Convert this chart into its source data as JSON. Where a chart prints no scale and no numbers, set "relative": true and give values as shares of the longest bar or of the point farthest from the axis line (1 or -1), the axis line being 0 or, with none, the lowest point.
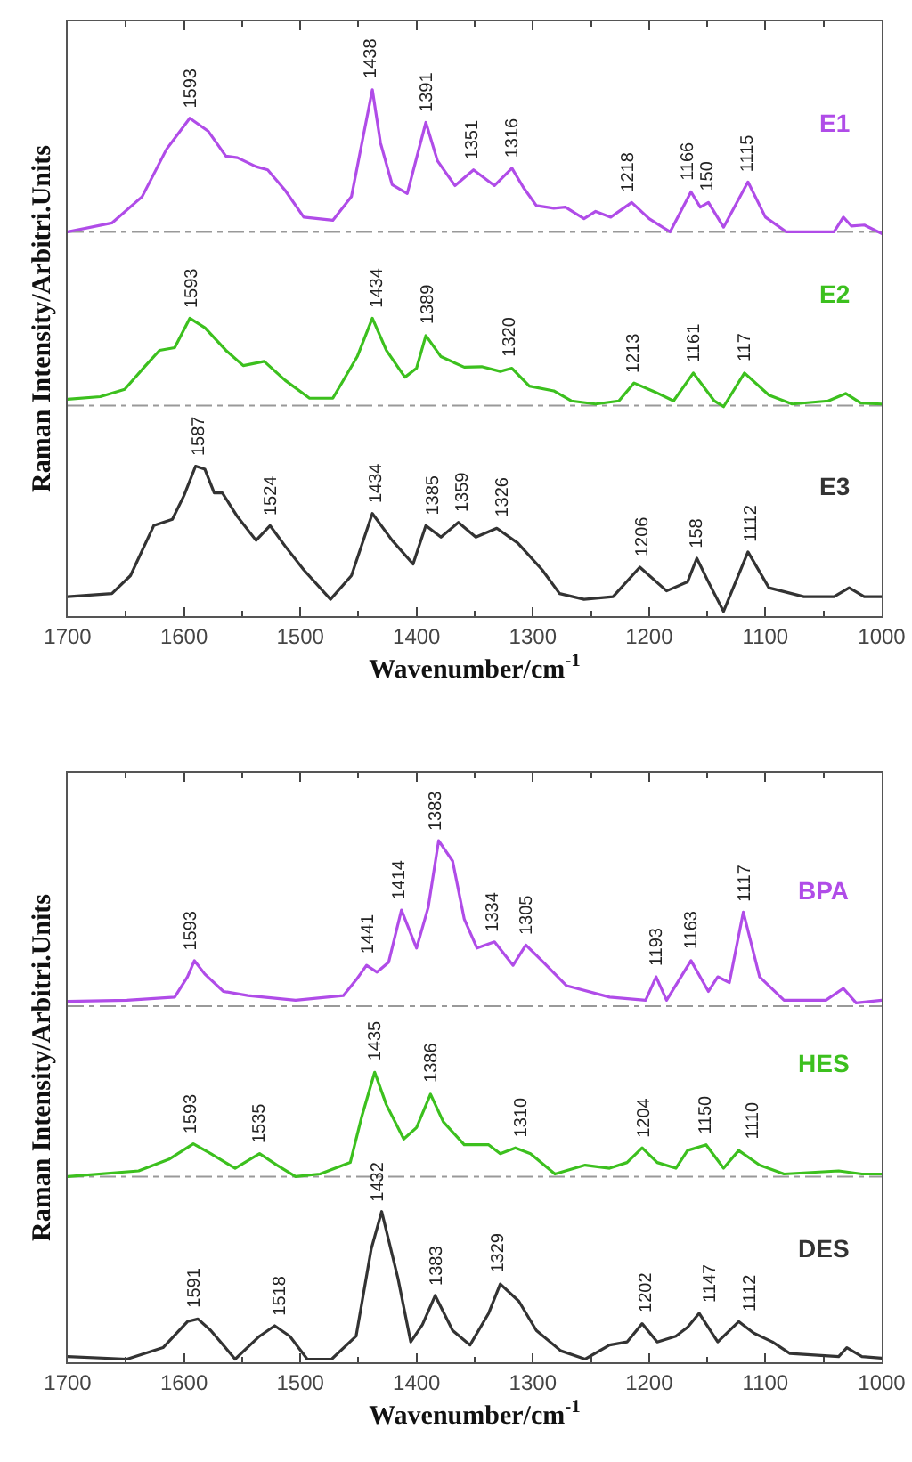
{
  "chart_data": [
    {
      "type": "line",
      "relative": true,
      "xlabel": "Wavenumber/cm$^{-1}$",
      "ylabel": "Raman Intensity/Arbitri.Units",
      "xlim": [
        1700,
        1000
      ],
      "xticks": [
        1700,
        1600,
        1500,
        1400,
        1300,
        1200,
        1100,
        1000
      ],
      "grid": false,
      "tick_labels": "x",
      "series": [
        {
          "name": "E1",
          "color": "#b04ce8",
          "x": [
            1700,
            1662,
            1636,
            1615,
            1595,
            1579,
            1564,
            1554,
            1538,
            1528,
            1513,
            1497,
            1472,
            1456,
            1446,
            1438,
            1431,
            1421,
            1408,
            1392,
            1382,
            1367,
            1351,
            1333,
            1318,
            1308,
            1297,
            1282,
            1272,
            1256,
            1246,
            1233,
            1215,
            1200,
            1182,
            1164,
            1156,
            1149,
            1136,
            1115,
            1100,
            1082,
            1041,
            1033,
            1026,
            1015,
            1000
          ],
          "values": [
            0.73,
            0.747,
            0.797,
            0.887,
            0.946,
            0.921,
            0.874,
            0.871,
            0.854,
            0.848,
            0.809,
            0.758,
            0.752,
            0.797,
            0.91,
            1.0,
            0.899,
            0.82,
            0.803,
            0.938,
            0.865,
            0.818,
            0.848,
            0.818,
            0.851,
            0.814,
            0.78,
            0.775,
            0.777,
            0.755,
            0.769,
            0.758,
            0.786,
            0.755,
            0.73,
            0.806,
            0.777,
            0.786,
            0.739,
            0.825,
            0.758,
            0.73,
            0.73,
            0.758,
            0.741,
            0.743,
            0.727
          ]
        },
        {
          "name": "E2",
          "color": "#3cc01e",
          "x": [
            1700,
            1672,
            1651,
            1633,
            1621,
            1608,
            1595,
            1582,
            1564,
            1549,
            1531,
            1513,
            1492,
            1472,
            1451,
            1438,
            1426,
            1410,
            1400,
            1392,
            1379,
            1359,
            1344,
            1328,
            1318,
            1303,
            1282,
            1267,
            1246,
            1226,
            1213,
            1195,
            1179,
            1162,
            1144,
            1136,
            1118,
            1097,
            1077,
            1046,
            1031,
            1018,
            1000
          ],
          "values": [
            0.412,
            0.417,
            0.431,
            0.476,
            0.505,
            0.51,
            0.566,
            0.548,
            0.505,
            0.476,
            0.484,
            0.448,
            0.414,
            0.414,
            0.493,
            0.566,
            0.505,
            0.454,
            0.471,
            0.533,
            0.493,
            0.473,
            0.474,
            0.465,
            0.471,
            0.437,
            0.428,
            0.409,
            0.403,
            0.409,
            0.443,
            0.426,
            0.409,
            0.462,
            0.409,
            0.398,
            0.462,
            0.42,
            0.403,
            0.409,
            0.423,
            0.405,
            0.403
          ]
        },
        {
          "name": "E3",
          "color": "#333333",
          "x": [
            1700,
            1662,
            1646,
            1626,
            1610,
            1600,
            1590,
            1582,
            1574,
            1567,
            1554,
            1538,
            1526,
            1513,
            1497,
            1474,
            1456,
            1438,
            1421,
            1403,
            1392,
            1379,
            1364,
            1349,
            1331,
            1313,
            1292,
            1277,
            1256,
            1231,
            1208,
            1185,
            1167,
            1159,
            1149,
            1136,
            1115,
            1097,
            1067,
            1041,
            1028,
            1015,
            1000
          ],
          "values": [
            0.037,
            0.043,
            0.077,
            0.172,
            0.184,
            0.229,
            0.285,
            0.279,
            0.234,
            0.234,
            0.189,
            0.144,
            0.172,
            0.133,
            0.088,
            0.032,
            0.077,
            0.195,
            0.144,
            0.099,
            0.172,
            0.15,
            0.178,
            0.15,
            0.167,
            0.139,
            0.088,
            0.043,
            0.032,
            0.037,
            0.093,
            0.048,
            0.065,
            0.11,
            0.065,
            0.009,
            0.122,
            0.054,
            0.037,
            0.037,
            0.054,
            0.037,
            0.037
          ]
        }
      ],
      "ref_lines": [
        {
          "axis": "y",
          "value": 0.73,
          "color": "#999999",
          "line_style": "dashed"
        },
        {
          "axis": "y",
          "value": 0.4,
          "color": "#999999",
          "line_style": "dashed"
        }
      ],
      "annotations": [
        {
          "text": "1593",
          "x": 1593,
          "y": 0.946
        },
        {
          "text": "1438",
          "x": 1438,
          "y": 1.0
        },
        {
          "text": "1391",
          "x": 1391,
          "y": 0.938
        },
        {
          "text": "1351",
          "x": 1351,
          "y": 0.848
        },
        {
          "text": "1316",
          "x": 1316,
          "y": 0.851
        },
        {
          "text": "1218",
          "x": 1218,
          "y": 0.786
        },
        {
          "text": "1166",
          "x": 1166,
          "y": 0.806
        },
        {
          "text": "150",
          "x": 1150,
          "y": 0.786
        },
        {
          "text": "1115",
          "x": 1115,
          "y": 0.825
        },
        {
          "text": "1593",
          "x": 1593,
          "y": 0.566
        },
        {
          "text": "1434",
          "x": 1434,
          "y": 0.566
        },
        {
          "text": "1389",
          "x": 1389,
          "y": 0.533
        },
        {
          "text": "1320",
          "x": 1320,
          "y": 0.471
        },
        {
          "text": "1213",
          "x": 1213,
          "y": 0.443
        },
        {
          "text": "1161",
          "x": 1161,
          "y": 0.462
        },
        {
          "text": "117",
          "x": 1117,
          "y": 0.462
        },
        {
          "text": "1587",
          "x": 1587,
          "y": 0.285
        },
        {
          "text": "1524",
          "x": 1524,
          "y": 0.172
        },
        {
          "text": "1434",
          "x": 1434,
          "y": 0.195
        },
        {
          "text": "1385",
          "x": 1385,
          "y": 0.172
        },
        {
          "text": "1359",
          "x": 1359,
          "y": 0.178
        },
        {
          "text": "1326",
          "x": 1326,
          "y": 0.167
        },
        {
          "text": "1206",
          "x": 1206,
          "y": 0.093
        },
        {
          "text": "158",
          "x": 1158,
          "y": 0.11
        },
        {
          "text": "1112",
          "x": 1112,
          "y": 0.122
        }
      ]
    },
    {
      "type": "line",
      "relative": true,
      "xlabel": "Wavenumber/cm$^{-1}$",
      "ylabel": "Raman Intensity/Arbitri.Units",
      "xlim": [
        1700,
        1000
      ],
      "xticks": [
        1700,
        1600,
        1500,
        1400,
        1300,
        1200,
        1100,
        1000
      ],
      "grid": false,
      "tick_labels": "x",
      "series": [
        {
          "name": "BPA",
          "color": "#b04ce8",
          "x": [
            1700,
            1649,
            1608,
            1597,
            1591,
            1582,
            1566,
            1545,
            1504,
            1463,
            1452,
            1443,
            1434,
            1424,
            1413,
            1400,
            1390,
            1381,
            1369,
            1359,
            1348,
            1333,
            1317,
            1306,
            1291,
            1271,
            1234,
            1203,
            1194,
            1185,
            1164,
            1149,
            1141,
            1131,
            1119,
            1105,
            1084,
            1048,
            1033,
            1022,
            1000
          ],
          "values": [
            0.692,
            0.694,
            0.7,
            0.739,
            0.77,
            0.744,
            0.711,
            0.703,
            0.694,
            0.703,
            0.733,
            0.761,
            0.748,
            0.767,
            0.867,
            0.794,
            0.872,
            1.0,
            0.961,
            0.85,
            0.794,
            0.806,
            0.761,
            0.8,
            0.767,
            0.722,
            0.7,
            0.694,
            0.739,
            0.694,
            0.77,
            0.711,
            0.739,
            0.728,
            0.863,
            0.739,
            0.694,
            0.694,
            0.717,
            0.689,
            0.694
          ]
        },
        {
          "name": "HES",
          "color": "#3cc01e",
          "x": [
            1700,
            1639,
            1613,
            1592,
            1577,
            1556,
            1535,
            1520,
            1504,
            1483,
            1457,
            1447,
            1436,
            1426,
            1411,
            1400,
            1388,
            1377,
            1359,
            1338,
            1328,
            1315,
            1302,
            1281,
            1255,
            1234,
            1219,
            1206,
            1193,
            1177,
            1167,
            1151,
            1136,
            1123,
            1105,
            1084,
            1037,
            1017,
            1000
          ],
          "values": [
            0.356,
            0.367,
            0.389,
            0.419,
            0.4,
            0.372,
            0.4,
            0.378,
            0.356,
            0.361,
            0.383,
            0.472,
            0.556,
            0.494,
            0.428,
            0.45,
            0.514,
            0.461,
            0.417,
            0.417,
            0.4,
            0.411,
            0.4,
            0.361,
            0.378,
            0.372,
            0.383,
            0.411,
            0.383,
            0.372,
            0.406,
            0.417,
            0.372,
            0.406,
            0.378,
            0.361,
            0.367,
            0.361,
            0.361
          ]
        },
        {
          "name": "DES",
          "color": "#333333",
          "x": [
            1700,
            1649,
            1618,
            1597,
            1588,
            1577,
            1556,
            1535,
            1522,
            1509,
            1494,
            1473,
            1452,
            1439,
            1430,
            1416,
            1405,
            1395,
            1384,
            1369,
            1354,
            1338,
            1328,
            1312,
            1297,
            1276,
            1255,
            1234,
            1219,
            1206,
            1193,
            1177,
            1167,
            1157,
            1141,
            1123,
            1110,
            1094,
            1079,
            1037,
            1030,
            1017,
            1000
          ],
          "values": [
            0.011,
            0.006,
            0.028,
            0.078,
            0.083,
            0.061,
            0.006,
            0.05,
            0.07,
            0.05,
            0.006,
            0.006,
            0.05,
            0.217,
            0.289,
            0.161,
            0.039,
            0.072,
            0.128,
            0.061,
            0.033,
            0.094,
            0.15,
            0.117,
            0.061,
            0.022,
            0.006,
            0.033,
            0.039,
            0.074,
            0.039,
            0.05,
            0.067,
            0.094,
            0.039,
            0.078,
            0.056,
            0.039,
            0.017,
            0.011,
            0.028,
            0.011,
            0.008
          ]
        }
      ],
      "ref_lines": [
        {
          "axis": "y",
          "value": 0.683,
          "color": "#999999",
          "line_style": "dashed"
        },
        {
          "axis": "y",
          "value": 0.356,
          "color": "#999999",
          "line_style": "dashed"
        }
      ],
      "annotations": [
        {
          "text": "1593",
          "x": 1593,
          "y": 0.77
        },
        {
          "text": "1441",
          "x": 1441,
          "y": 0.761
        },
        {
          "text": "1414",
          "x": 1414,
          "y": 0.867
        },
        {
          "text": "1383",
          "x": 1383,
          "y": 1.0
        },
        {
          "text": "1334",
          "x": 1334,
          "y": 0.806
        },
        {
          "text": "1305",
          "x": 1305,
          "y": 0.8
        },
        {
          "text": "1193",
          "x": 1193,
          "y": 0.739
        },
        {
          "text": "1163",
          "x": 1163,
          "y": 0.77
        },
        {
          "text": "1117",
          "x": 1117,
          "y": 0.863
        },
        {
          "text": "1593",
          "x": 1593,
          "y": 0.419
        },
        {
          "text": "1535",
          "x": 1535,
          "y": 0.4
        },
        {
          "text": "1435",
          "x": 1435,
          "y": 0.556
        },
        {
          "text": "1386",
          "x": 1386,
          "y": 0.514
        },
        {
          "text": "1310",
          "x": 1310,
          "y": 0.411
        },
        {
          "text": "1204",
          "x": 1204,
          "y": 0.411
        },
        {
          "text": "1150",
          "x": 1150,
          "y": 0.417
        },
        {
          "text": "1110",
          "x": 1110,
          "y": 0.406
        },
        {
          "text": "1591",
          "x": 1591,
          "y": 0.083
        },
        {
          "text": "1518",
          "x": 1518,
          "y": 0.07
        },
        {
          "text": "1432",
          "x": 1432,
          "y": 0.289
        },
        {
          "text": "1383",
          "x": 1383,
          "y": 0.128
        },
        {
          "text": "1329",
          "x": 1329,
          "y": 0.15
        },
        {
          "text": "1202",
          "x": 1202,
          "y": 0.074
        },
        {
          "text": "1147",
          "x": 1147,
          "y": 0.094
        },
        {
          "text": "1112",
          "x": 1112,
          "y": 0.078
        }
      ]
    }
  ]
}
